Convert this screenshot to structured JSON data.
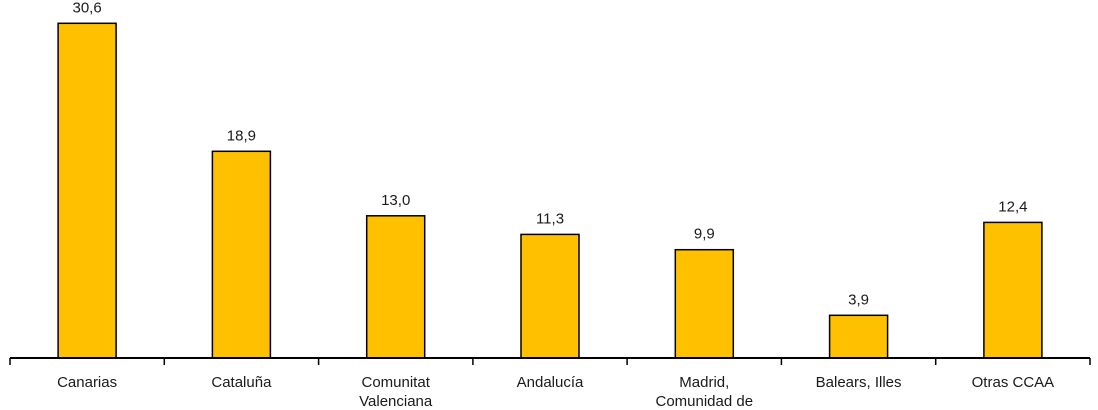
{
  "chart_data": {
    "type": "bar",
    "title": "",
    "xlabel": "",
    "ylabel": "",
    "categories": [
      [
        "Canarias"
      ],
      [
        "Cataluña"
      ],
      [
        "Comunitat",
        "Valenciana"
      ],
      [
        "Andalucía"
      ],
      [
        "Madrid,",
        "Comunidad de"
      ],
      [
        "Balears, Illes"
      ],
      [
        "Otras CCAA"
      ]
    ],
    "values": [
      30.6,
      18.9,
      13.0,
      11.3,
      9.9,
      3.9,
      12.4
    ],
    "value_labels": [
      "30,6",
      "18,9",
      "13,0",
      "11,3",
      "9,9",
      "3,9",
      "12,4"
    ],
    "ylim": [
      0,
      32
    ],
    "grid": false,
    "legend": "none",
    "bar_color": "#FFC000",
    "bar_edge_color": "#000000"
  }
}
